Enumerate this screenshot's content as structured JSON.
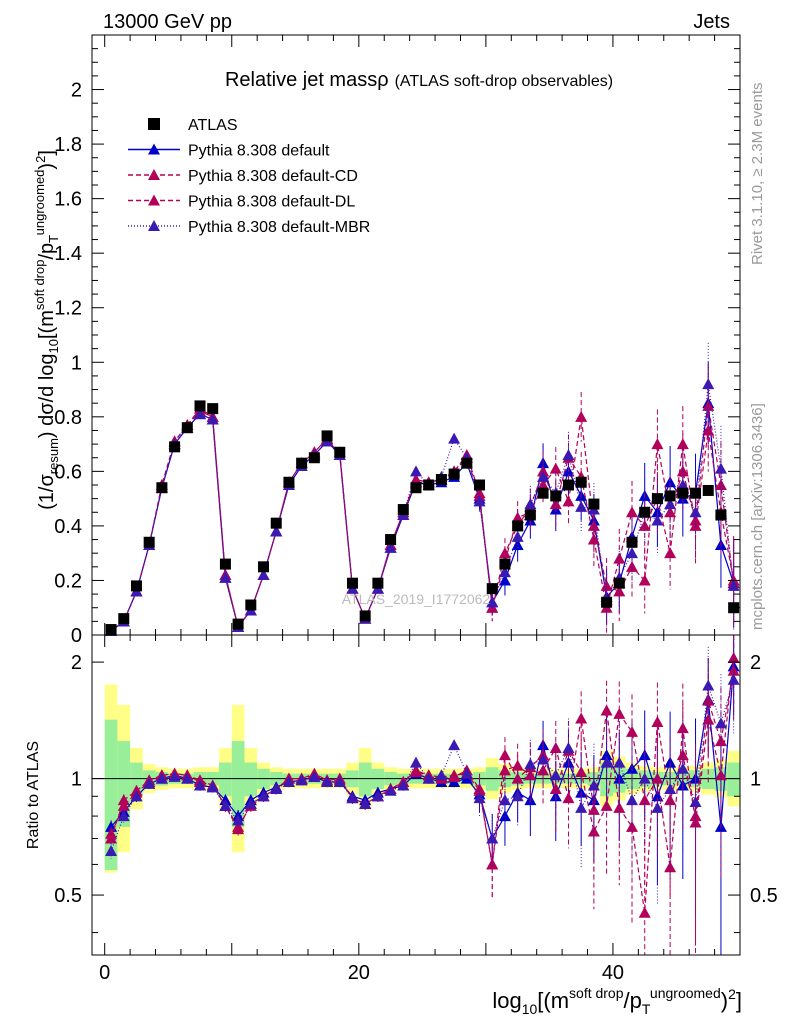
{
  "header": {
    "left": "13000 GeV pp",
    "right": "Jets"
  },
  "side_text": {
    "rivet": "Rivet 3.1.10, ≥ 2.3M events",
    "ref": "mcplots.cern.ch [arXiv:1306.3436]"
  },
  "watermark": "ATLAS_2019_I1772062",
  "colors": {
    "atlas": "#000000",
    "default": "#0000cc",
    "cd": "#b3005a",
    "dl": "#b3005a",
    "mbr": "#3a1ab3",
    "band_inner": "#99ee99",
    "band_outer": "#ffff88"
  },
  "chart_data": [
    {
      "type": "line",
      "title": "Relative jet massρ",
      "subtitle": "(ATLAS soft-drop observables)",
      "ylabel": "(1/σresum) dσ/d log10[(msoft drop/pTungroomed)2]",
      "xlim": [
        -1,
        50
      ],
      "ylim": [
        0,
        2.2
      ],
      "yticks": [
        "0",
        "0.2",
        "0.4",
        "0.6",
        "0.8",
        "1",
        "1.2",
        "1.4",
        "1.6",
        "1.8",
        "2"
      ],
      "x": [
        0.5,
        1.5,
        2.5,
        3.5,
        4.5,
        5.5,
        6.5,
        7.5,
        8.5,
        9.5,
        10.5,
        11.5,
        12.5,
        13.5,
        14.5,
        15.5,
        16.5,
        17.5,
        18.5,
        19.5,
        20.5,
        21.5,
        22.5,
        23.5,
        24.5,
        25.5,
        26.5,
        27.5,
        28.5,
        29.5,
        30.5,
        31.5,
        32.5,
        33.5,
        34.5,
        35.5,
        36.5,
        37.5,
        38.5,
        39.5,
        40.5,
        41.5,
        42.5,
        43.5,
        44.5,
        45.5,
        46.5,
        47.5,
        48.5,
        49.5
      ],
      "series": [
        {
          "name": "ATLAS",
          "marker": "square",
          "values": [
            0.02,
            0.06,
            0.18,
            0.34,
            0.54,
            0.69,
            0.76,
            0.84,
            0.83,
            0.26,
            0.04,
            0.11,
            0.25,
            0.41,
            0.56,
            0.63,
            0.65,
            0.73,
            0.67,
            0.19,
            0.07,
            0.19,
            0.35,
            0.46,
            0.54,
            0.55,
            0.57,
            0.59,
            0.63,
            0.55,
            0.17,
            0.26,
            0.4,
            0.44,
            0.52,
            0.51,
            0.55,
            0.56,
            0.48,
            0.12,
            0.19,
            0.34,
            0.45,
            0.5,
            0.51,
            0.52,
            0.52,
            0.53,
            0.44,
            0.1
          ]
        },
        {
          "name": "Pythia 8.308 default",
          "marker": "triangle",
          "dash": "",
          "values": [
            0.015,
            0.05,
            0.16,
            0.33,
            0.54,
            0.7,
            0.76,
            0.81,
            0.79,
            0.21,
            0.03,
            0.09,
            0.22,
            0.38,
            0.55,
            0.62,
            0.66,
            0.71,
            0.66,
            0.17,
            0.06,
            0.17,
            0.32,
            0.44,
            0.56,
            0.55,
            0.56,
            0.58,
            0.63,
            0.5,
            0.12,
            0.2,
            0.33,
            0.42,
            0.63,
            0.46,
            0.6,
            0.51,
            0.42,
            0.14,
            0.19,
            0.36,
            0.51,
            0.45,
            0.56,
            0.5,
            0.52,
            0.85,
            0.33,
            0.19
          ]
        },
        {
          "name": "Pythia 8.308 default-CD",
          "marker": "triangle",
          "dash": "5,3",
          "values": [
            0.015,
            0.05,
            0.16,
            0.33,
            0.55,
            0.71,
            0.77,
            0.83,
            0.8,
            0.22,
            0.03,
            0.09,
            0.22,
            0.38,
            0.56,
            0.63,
            0.67,
            0.72,
            0.67,
            0.17,
            0.06,
            0.17,
            0.33,
            0.45,
            0.57,
            0.56,
            0.57,
            0.6,
            0.66,
            0.52,
            0.1,
            0.27,
            0.43,
            0.45,
            0.55,
            0.61,
            0.49,
            0.8,
            0.4,
            0.18,
            0.16,
            0.25,
            0.2,
            0.7,
            0.45,
            0.6,
            0.42,
            0.84,
            0.55,
            0.19
          ]
        },
        {
          "name": "Pythia 8.308 default-DL",
          "marker": "triangle",
          "dash": "5,3",
          "values": [
            0.015,
            0.05,
            0.16,
            0.33,
            0.55,
            0.71,
            0.77,
            0.82,
            0.8,
            0.22,
            0.03,
            0.09,
            0.22,
            0.38,
            0.56,
            0.63,
            0.67,
            0.72,
            0.66,
            0.17,
            0.06,
            0.17,
            0.33,
            0.45,
            0.56,
            0.56,
            0.57,
            0.6,
            0.65,
            0.51,
            0.1,
            0.3,
            0.4,
            0.47,
            0.6,
            0.48,
            0.65,
            0.58,
            0.35,
            0.1,
            0.28,
            0.45,
            0.4,
            0.5,
            0.3,
            0.7,
            0.4,
            0.75,
            0.45,
            0.2
          ]
        },
        {
          "name": "Pythia 8.308 default-MBR",
          "marker": "triangle",
          "dash": "1,2",
          "values": [
            0.015,
            0.05,
            0.16,
            0.33,
            0.54,
            0.7,
            0.76,
            0.81,
            0.79,
            0.21,
            0.03,
            0.09,
            0.22,
            0.38,
            0.55,
            0.62,
            0.66,
            0.71,
            0.66,
            0.17,
            0.06,
            0.17,
            0.32,
            0.44,
            0.6,
            0.55,
            0.58,
            0.72,
            0.65,
            0.49,
            0.12,
            0.23,
            0.36,
            0.48,
            0.58,
            0.52,
            0.66,
            0.47,
            0.46,
            0.13,
            0.21,
            0.3,
            0.45,
            0.42,
            0.48,
            0.55,
            0.45,
            0.92,
            0.61,
            0.18
          ]
        }
      ],
      "legend": "top-left"
    },
    {
      "type": "line",
      "ylabel": "Ratio to ATLAS",
      "xlabel": "log10[(msoft drop/pTungroomed)2]",
      "xlim": [
        -1,
        50
      ],
      "ylim": [
        0.35,
        2.35
      ],
      "yticks": [
        "0.5",
        "1",
        "2"
      ],
      "xticks": [
        "0",
        "20",
        "40"
      ],
      "log_y": true,
      "band_inner": [
        1.42,
        1.25,
        1.1,
        1.05,
        1.04,
        1.03,
        1.03,
        1.04,
        1.04,
        1.1,
        1.25,
        1.1,
        1.06,
        1.04,
        1.03,
        1.03,
        1.03,
        1.03,
        1.03,
        1.05,
        1.1,
        1.06,
        1.04,
        1.03,
        1.03,
        1.03,
        1.03,
        1.03,
        1.03,
        1.04,
        1.07,
        1.05,
        1.04,
        1.03,
        1.03,
        1.03,
        1.03,
        1.03,
        1.04,
        1.1,
        1.08,
        1.06,
        1.05,
        1.04,
        1.04,
        1.04,
        1.05,
        1.06,
        1.07,
        1.1
      ],
      "band_outer": [
        1.75,
        1.55,
        1.2,
        1.09,
        1.07,
        1.06,
        1.06,
        1.07,
        1.07,
        1.2,
        1.55,
        1.2,
        1.1,
        1.07,
        1.06,
        1.06,
        1.06,
        1.06,
        1.06,
        1.1,
        1.2,
        1.1,
        1.07,
        1.06,
        1.06,
        1.06,
        1.06,
        1.06,
        1.06,
        1.07,
        1.13,
        1.09,
        1.07,
        1.06,
        1.06,
        1.06,
        1.06,
        1.06,
        1.07,
        1.18,
        1.14,
        1.1,
        1.08,
        1.07,
        1.07,
        1.07,
        1.08,
        1.1,
        1.12,
        1.18
      ],
      "series": [
        {
          "name": "Pythia 8.308 default",
          "values": [
            0.75,
            0.82,
            0.9,
            0.97,
            1.0,
            1.02,
            1.0,
            0.96,
            0.95,
            0.88,
            0.8,
            0.88,
            0.92,
            0.95,
            0.98,
            0.99,
            1.01,
            0.98,
            0.98,
            0.9,
            0.88,
            0.92,
            0.94,
            0.96,
            1.03,
            1.0,
            0.98,
            0.98,
            1.0,
            0.91,
            0.7,
            0.8,
            0.92,
            0.88,
            1.22,
            0.9,
            1.1,
            0.92,
            0.88,
            1.15,
            1.0,
            1.06,
            1.15,
            0.9,
            1.1,
            0.96,
            1.0,
            1.6,
            0.75,
            1.95
          ]
        },
        {
          "name": "Pythia 8.308 default-CD",
          "values": [
            0.72,
            0.85,
            0.92,
            0.98,
            1.02,
            1.03,
            1.02,
            0.99,
            0.96,
            0.85,
            0.75,
            0.85,
            0.9,
            0.94,
            1.0,
            1.0,
            1.02,
            0.99,
            1.0,
            0.89,
            0.86,
            0.9,
            0.94,
            0.98,
            1.05,
            1.02,
            1.0,
            1.01,
            1.05,
            0.94,
            0.6,
            1.05,
            1.08,
            1.02,
            1.05,
            1.2,
            0.89,
            1.43,
            0.83,
            1.5,
            0.84,
            0.75,
            0.45,
            1.4,
            0.88,
            1.15,
            0.8,
            1.59,
            1.25,
            1.9
          ]
        },
        {
          "name": "Pythia 8.308 default-DL",
          "values": [
            0.7,
            0.88,
            0.93,
            0.99,
            1.02,
            1.03,
            1.02,
            0.98,
            0.96,
            0.85,
            0.74,
            0.86,
            0.9,
            0.94,
            1.0,
            1.0,
            1.03,
            0.99,
            0.99,
            0.89,
            0.86,
            0.9,
            0.94,
            0.98,
            1.04,
            1.02,
            1.01,
            1.02,
            1.03,
            0.93,
            0.6,
            1.15,
            1.0,
            1.07,
            1.15,
            0.94,
            1.18,
            1.04,
            0.73,
            0.85,
            1.47,
            1.32,
            0.88,
            1.0,
            0.59,
            1.35,
            0.77,
            1.42,
            1.02,
            2.05
          ]
        },
        {
          "name": "Pythia 8.308 default-MBR",
          "values": [
            0.65,
            0.8,
            0.9,
            0.97,
            1.0,
            1.01,
            1.0,
            0.96,
            0.95,
            0.85,
            0.78,
            0.86,
            0.9,
            0.94,
            0.98,
            0.99,
            1.01,
            0.98,
            0.98,
            0.89,
            0.86,
            0.9,
            0.93,
            0.96,
            1.1,
            1.0,
            1.02,
            1.22,
            1.03,
            0.89,
            0.7,
            0.88,
            0.9,
            1.09,
            1.12,
            1.02,
            1.2,
            0.84,
            0.96,
            1.1,
            1.1,
            0.88,
            1.0,
            0.84,
            0.94,
            1.06,
            0.87,
            1.74,
            1.39,
            1.8
          ]
        }
      ]
    }
  ]
}
